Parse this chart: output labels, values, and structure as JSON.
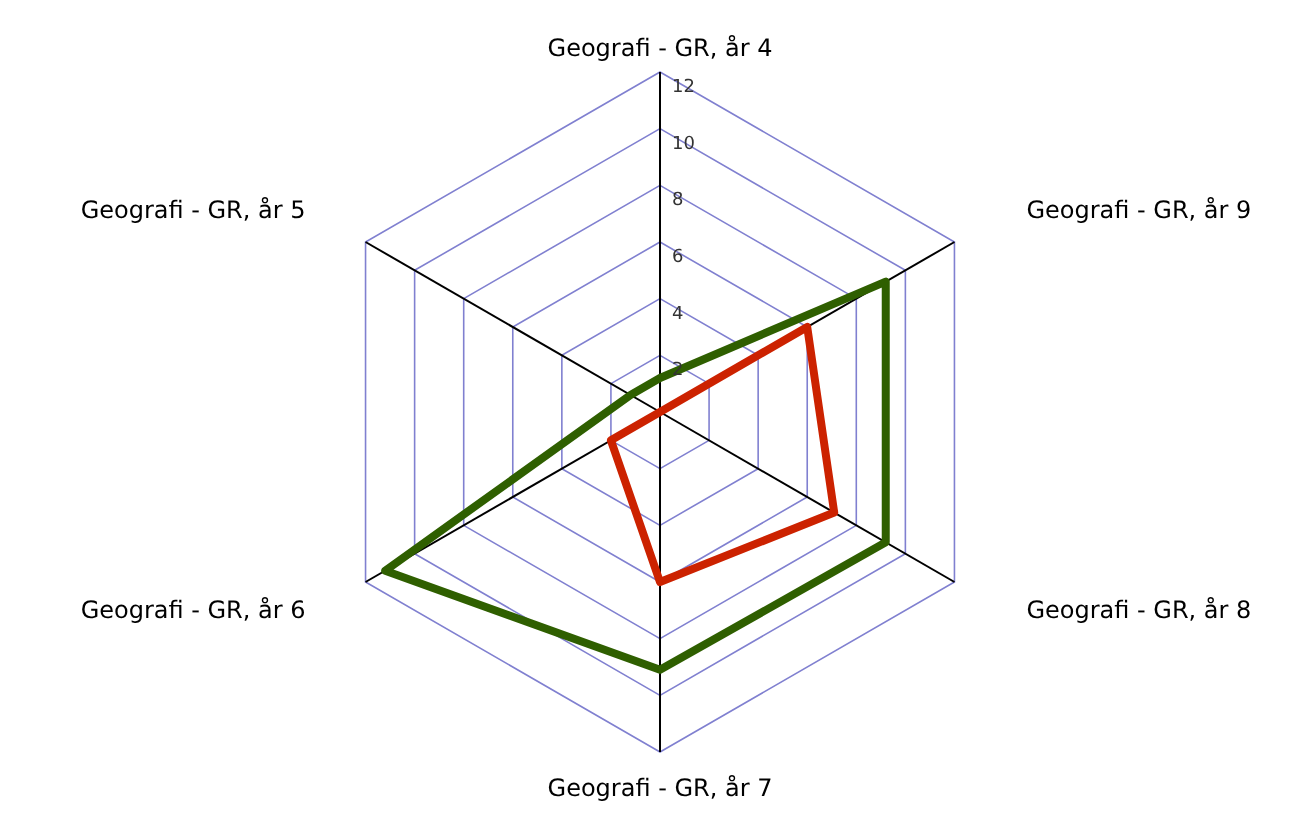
{
  "chart_data": {
    "type": "radar",
    "categories": [
      "Geografi - GR, år 4",
      "Geografi - GR, år 9",
      "Geografi - GR, år 8",
      "Geografi - GR, år 7",
      "Geografi - GR, år 6",
      "Geografi - GR, år 5"
    ],
    "ylim": [
      0,
      12
    ],
    "yticks": [
      2,
      4,
      6,
      8,
      10,
      12
    ],
    "grid": true,
    "series": [
      {
        "color": "#2f5f00",
        "values": [
          1.2,
          9.2,
          9.2,
          9.1,
          11.2,
          1.2
        ]
      },
      {
        "color": "#cc2200",
        "values": [
          0,
          6,
          7.1,
          6,
          2,
          0
        ]
      }
    ]
  }
}
